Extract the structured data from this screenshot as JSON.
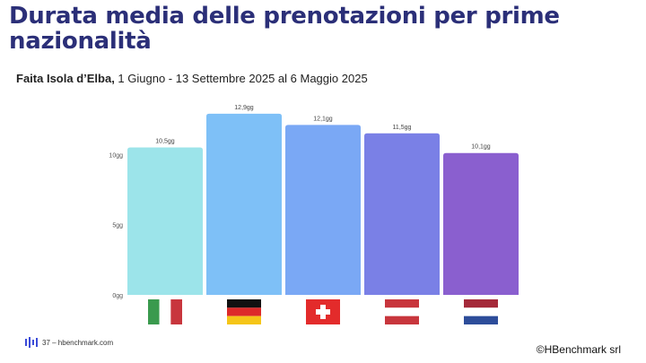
{
  "title": "Durata media delle prenotazioni per prime nazionalità",
  "subtitle": {
    "bold": "Faita Isola d’Elba,",
    "rest": " 1 Giugno - 13 Settembre 2025 al 6 Maggio 2025"
  },
  "chart_data": {
    "type": "bar",
    "categories": [
      "Italia",
      "Germania",
      "Svizzera",
      "Austria",
      "Paesi Bassi"
    ],
    "values": [
      10.5,
      12.9,
      12.1,
      11.5,
      10.1
    ],
    "value_labels": [
      "10,5gg",
      "12,9gg",
      "12,1gg",
      "11,5gg",
      "10,1gg"
    ],
    "colors": [
      "#9ce4ea",
      "#7ec0f7",
      "#7aa8f5",
      "#7a80e6",
      "#8a5fcf"
    ],
    "yticks": [
      {
        "value": 0,
        "label": "0gg"
      },
      {
        "value": 5,
        "label": "5gg"
      },
      {
        "value": 10,
        "label": "10gg"
      }
    ],
    "ylim": [
      0,
      13.4
    ],
    "flags": [
      "flag-italy-icon",
      "flag-germany-icon",
      "flag-switzerland-icon",
      "flag-austria-icon",
      "flag-netherlands-icon"
    ],
    "grid": false,
    "legend": "none"
  },
  "footer": {
    "page_text": "37 – hbenchmark.com",
    "copyright": "©HBenchmark srl"
  }
}
